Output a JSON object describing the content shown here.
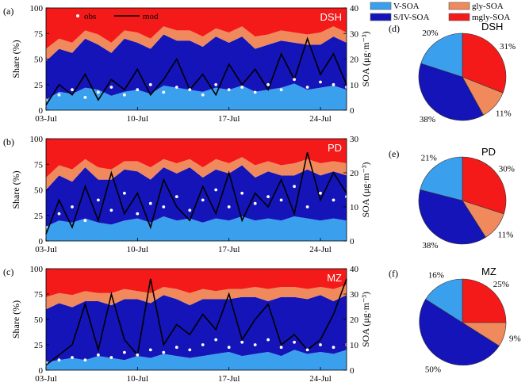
{
  "colors": {
    "v_soa": "#3aa0ee",
    "sivsoa": "#1414b8",
    "gly_soa": "#f08a5d",
    "mgly_soa": "#f41a1a",
    "obs": "#ffffff",
    "mod": "#000000"
  },
  "legend": {
    "items": [
      {
        "label": "V-SOA",
        "color": "#3aa0ee"
      },
      {
        "label": "gly-SOA",
        "color": "#f08a5d"
      },
      {
        "label": "S/IV-SOA",
        "color": "#1414b8"
      },
      {
        "label": "mgly-SOA",
        "color": "#f41a1a"
      }
    ],
    "obs_label": "obs",
    "mod_label": "mod"
  },
  "chart_data": [
    {
      "type": "area",
      "panel": "(a)",
      "site": "DSH",
      "ylabel": "Share (%)",
      "y2label": "SOA (μg·m⁻³)",
      "ylim": [
        0,
        100
      ],
      "y2lim": [
        0,
        40
      ],
      "yticks": [
        "0",
        "25",
        "50",
        "75",
        "100"
      ],
      "y2ticks": [
        "0",
        "10",
        "20",
        "30",
        "40"
      ],
      "xticks": [
        "03-Jul",
        "10-Jul",
        "17-Jul",
        "24-Jul"
      ],
      "x_start": "03-Jul",
      "x_end": "26-Jul",
      "days": [
        0,
        1,
        2,
        3,
        4,
        5,
        6,
        7,
        8,
        9,
        10,
        11,
        12,
        13,
        14,
        15,
        16,
        17,
        18,
        19,
        20,
        21,
        22,
        23
      ],
      "series": [
        {
          "name": "V-SOA",
          "values": [
            10,
            18,
            16,
            22,
            20,
            14,
            18,
            20,
            16,
            24,
            22,
            20,
            18,
            22,
            20,
            24,
            18,
            20,
            22,
            26,
            20,
            22,
            24,
            20
          ]
        },
        {
          "name": "S/IV-SOA",
          "values": [
            38,
            42,
            40,
            48,
            44,
            42,
            52,
            46,
            44,
            50,
            46,
            48,
            44,
            50,
            46,
            48,
            42,
            44,
            46,
            40,
            44,
            42,
            48,
            46
          ]
        },
        {
          "name": "gly-SOA",
          "values": [
            12,
            10,
            10,
            8,
            10,
            10,
            8,
            10,
            10,
            8,
            10,
            10,
            10,
            8,
            10,
            10,
            12,
            10,
            10,
            10,
            10,
            12,
            10,
            10
          ]
        },
        {
          "name": "mgly-SOA",
          "values": [
            40,
            30,
            34,
            22,
            26,
            34,
            22,
            24,
            30,
            18,
            22,
            22,
            28,
            20,
            24,
            18,
            28,
            26,
            22,
            24,
            26,
            24,
            18,
            24
          ]
        }
      ],
      "obs": [
        4,
        6,
        8,
        5,
        7,
        9,
        6,
        8,
        10,
        7,
        9,
        8,
        6,
        10,
        8,
        9,
        7,
        10,
        8,
        12,
        9,
        11,
        10,
        9
      ],
      "mod": [
        2,
        10,
        6,
        14,
        4,
        12,
        8,
        16,
        6,
        12,
        20,
        8,
        14,
        6,
        18,
        10,
        16,
        8,
        22,
        12,
        28,
        14,
        22,
        10
      ]
    },
    {
      "type": "area",
      "panel": "(b)",
      "site": "PD",
      "ylabel": "Share (%)",
      "y2label": "SOA (μg·m⁻³)",
      "ylim": [
        0,
        100
      ],
      "y2lim": [
        0,
        30
      ],
      "yticks": [
        "0",
        "25",
        "50",
        "75",
        "100"
      ],
      "y2ticks": [
        "0",
        "10",
        "20",
        "30"
      ],
      "xticks": [
        "03-Jul",
        "10-Jul",
        "17-Jul",
        "24-Jul"
      ],
      "x_start": "03-Jul",
      "x_end": "26-Jul",
      "days": [
        0,
        1,
        2,
        3,
        4,
        5,
        6,
        7,
        8,
        9,
        10,
        11,
        12,
        13,
        14,
        15,
        16,
        17,
        18,
        19,
        20,
        21,
        22,
        23
      ],
      "series": [
        {
          "name": "V-SOA",
          "values": [
            14,
            20,
            18,
            22,
            18,
            16,
            20,
            22,
            18,
            24,
            20,
            22,
            18,
            22,
            20,
            24,
            20,
            22,
            20,
            24,
            22,
            20,
            22,
            20
          ]
        },
        {
          "name": "S/IV-SOA",
          "values": [
            36,
            44,
            40,
            50,
            42,
            44,
            50,
            46,
            42,
            48,
            46,
            50,
            44,
            48,
            46,
            50,
            42,
            46,
            44,
            40,
            48,
            44,
            46,
            44
          ]
        },
        {
          "name": "gly-SOA",
          "values": [
            12,
            10,
            12,
            8,
            12,
            10,
            8,
            10,
            12,
            8,
            10,
            8,
            10,
            10,
            10,
            8,
            12,
            10,
            10,
            12,
            10,
            12,
            10,
            12
          ]
        },
        {
          "name": "mgly-SOA",
          "values": [
            38,
            26,
            30,
            20,
            28,
            30,
            22,
            22,
            28,
            20,
            24,
            20,
            28,
            20,
            24,
            18,
            26,
            22,
            26,
            24,
            20,
            24,
            22,
            24
          ]
        }
      ],
      "obs": [
        4,
        8,
        10,
        6,
        12,
        9,
        14,
        8,
        11,
        10,
        13,
        9,
        12,
        15,
        10,
        14,
        11,
        13,
        12,
        16,
        10,
        14,
        12,
        13
      ],
      "mod": [
        2,
        12,
        4,
        16,
        6,
        20,
        8,
        14,
        4,
        18,
        10,
        6,
        16,
        8,
        20,
        6,
        14,
        10,
        18,
        8,
        26,
        12,
        20,
        14
      ]
    },
    {
      "type": "area",
      "panel": "(c)",
      "site": "MZ",
      "ylabel": "Share (%)",
      "y2label": "SOA (μg·m⁻³)",
      "ylim": [
        0,
        100
      ],
      "y2lim": [
        0,
        40
      ],
      "yticks": [
        "0",
        "25",
        "50",
        "75",
        "100"
      ],
      "y2ticks": [
        "0",
        "10",
        "20",
        "30",
        "40"
      ],
      "xticks": [
        "03-Jul",
        "10-Jul",
        "17-Jul",
        "24-Jul"
      ],
      "x_start": "03-Jul",
      "x_end": "26-Jul",
      "days": [
        0,
        1,
        2,
        3,
        4,
        5,
        6,
        7,
        8,
        9,
        10,
        11,
        12,
        13,
        14,
        15,
        16,
        17,
        18,
        19,
        20,
        21,
        22,
        23
      ],
      "series": [
        {
          "name": "V-SOA",
          "values": [
            8,
            10,
            12,
            10,
            14,
            12,
            10,
            14,
            12,
            16,
            14,
            12,
            14,
            16,
            18,
            14,
            16,
            18,
            14,
            20,
            16,
            18,
            16,
            20
          ]
        },
        {
          "name": "S/IV-SOA",
          "values": [
            52,
            56,
            50,
            58,
            54,
            52,
            60,
            56,
            54,
            58,
            56,
            52,
            56,
            54,
            52,
            58,
            56,
            50,
            58,
            52,
            54,
            56,
            52,
            54
          ]
        },
        {
          "name": "gly-SOA",
          "values": [
            12,
            10,
            12,
            10,
            8,
            12,
            10,
            8,
            10,
            8,
            10,
            12,
            10,
            8,
            10,
            8,
            10,
            12,
            10,
            10,
            10,
            8,
            12,
            10
          ]
        },
        {
          "name": "mgly-SOA",
          "values": [
            28,
            24,
            26,
            22,
            24,
            24,
            20,
            22,
            24,
            18,
            20,
            24,
            20,
            22,
            20,
            20,
            18,
            20,
            18,
            18,
            20,
            18,
            20,
            16
          ]
        }
      ],
      "obs": [
        3,
        4,
        5,
        4,
        6,
        5,
        7,
        6,
        8,
        7,
        9,
        8,
        10,
        12,
        9,
        11,
        10,
        12,
        9,
        11,
        8,
        10,
        9,
        10
      ],
      "mod": [
        2,
        6,
        10,
        26,
        8,
        30,
        12,
        6,
        36,
        10,
        18,
        14,
        22,
        16,
        30,
        12,
        20,
        26,
        10,
        14,
        8,
        12,
        22,
        36
      ]
    },
    {
      "type": "pie",
      "panel": "(d)",
      "site": "DSH",
      "categories": [
        "V-SOA",
        "mgly-SOA",
        "gly-SOA",
        "S/IV-SOA"
      ],
      "values": [
        20,
        31,
        11,
        38
      ],
      "labels": [
        "20%",
        "31%",
        "11%",
        "38%"
      ]
    },
    {
      "type": "pie",
      "panel": "(e)",
      "site": "PD",
      "categories": [
        "V-SOA",
        "mgly-SOA",
        "gly-SOA",
        "S/IV-SOA"
      ],
      "values": [
        21,
        30,
        11,
        38
      ],
      "labels": [
        "21%",
        "30%",
        "11%",
        "38%"
      ]
    },
    {
      "type": "pie",
      "panel": "(f)",
      "site": "MZ",
      "categories": [
        "V-SOA",
        "mgly-SOA",
        "gly-SOA",
        "S/IV-SOA"
      ],
      "values": [
        16,
        25,
        9,
        50
      ],
      "labels": [
        "16%",
        "25%",
        "9%",
        "50%"
      ]
    }
  ]
}
